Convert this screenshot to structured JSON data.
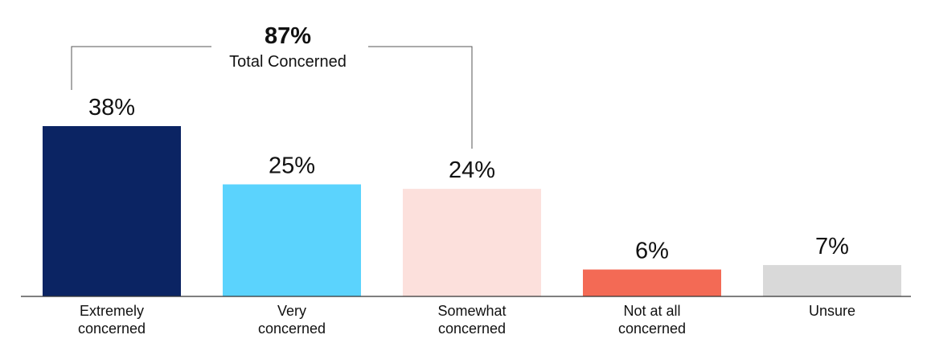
{
  "chart_data": {
    "type": "bar",
    "categories": [
      [
        "Extremely",
        "concerned"
      ],
      [
        "Very",
        "concerned"
      ],
      [
        "Somewhat",
        "concerned"
      ],
      [
        "Not at all",
        "concerned"
      ],
      [
        "Unsure"
      ]
    ],
    "values": [
      38,
      25,
      24,
      6,
      7
    ],
    "value_labels": [
      "38%",
      "25%",
      "24%",
      "6%",
      "7%"
    ],
    "colors": [
      "#0b2463",
      "#5bd3fd",
      "#fce0dc",
      "#f36a55",
      "#d9d9d9"
    ],
    "ylim": [
      0,
      40
    ],
    "annotation": {
      "value": "87%",
      "label": "Total Concerned",
      "spans": [
        0,
        2
      ]
    }
  }
}
